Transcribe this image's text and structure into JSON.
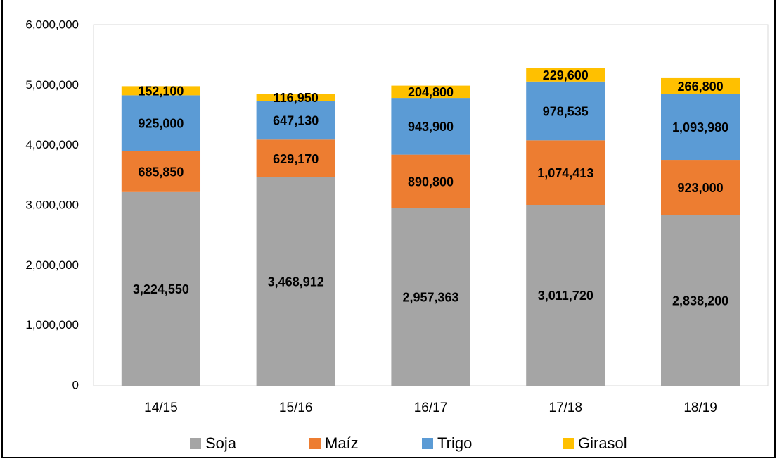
{
  "chart_data": {
    "type": "stacked_bar",
    "categories": [
      "14/15",
      "15/16",
      "16/17",
      "17/18",
      "18/19"
    ],
    "series": [
      {
        "name": "Soja",
        "color": "#a5a5a5",
        "values": [
          3224550,
          3468912,
          2957363,
          3011720,
          2838200
        ],
        "value_labels": [
          "3,224,550",
          "3,468,912",
          "2,957,363",
          "3,011,720",
          "2,838,200"
        ]
      },
      {
        "name": "Maíz",
        "color": "#ed7d31",
        "values": [
          685850,
          629170,
          890800,
          1074413,
          923000
        ],
        "value_labels": [
          "685,850",
          "629,170",
          "890,800",
          "1,074,413",
          "923,000"
        ]
      },
      {
        "name": "Trigo",
        "color": "#5b9bd5",
        "values": [
          925000,
          647130,
          943900,
          978535,
          1093980
        ],
        "value_labels": [
          "925,000",
          "647,130",
          "943,900",
          "978,535",
          "1,093,980"
        ]
      },
      {
        "name": "Girasol",
        "color": "#ffc000",
        "values": [
          152100,
          116950,
          204800,
          229600,
          266800
        ],
        "value_labels": [
          "152,100",
          "116,950",
          "204,800",
          "229,600",
          "266,800"
        ]
      }
    ],
    "ylim": [
      0,
      6000000
    ],
    "yticks": [
      {
        "value": 0,
        "label": "0"
      },
      {
        "value": 1000000,
        "label": "1,000,000"
      },
      {
        "value": 2000000,
        "label": "2,000,000"
      },
      {
        "value": 3000000,
        "label": "3,000,000"
      },
      {
        "value": 4000000,
        "label": "4,000,000"
      },
      {
        "value": 5000000,
        "label": "5,000,000"
      },
      {
        "value": 6000000,
        "label": "6,000,000"
      }
    ],
    "legend": "bottom",
    "grid": false
  }
}
